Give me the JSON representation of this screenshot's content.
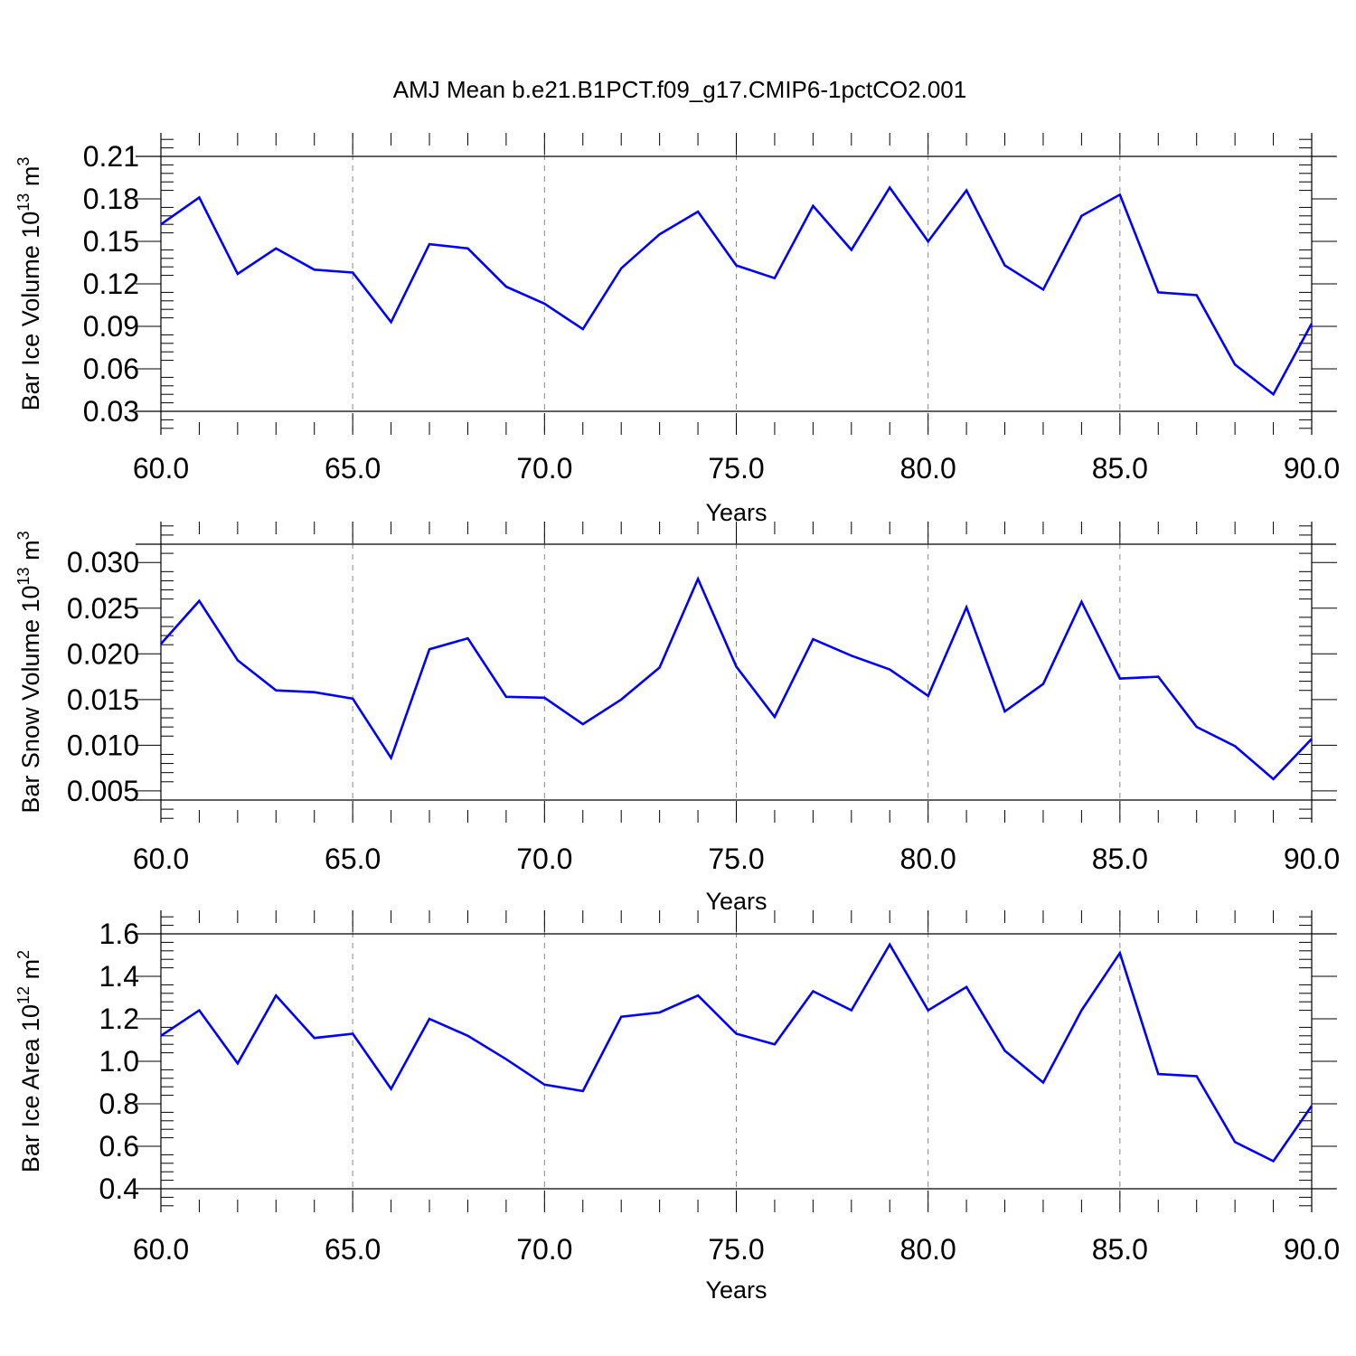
{
  "title": "AMJ Mean b.e21.B1PCT.f09_g17.CMIP6-1pctCO2.001",
  "chart_data": [
    {
      "type": "line",
      "title": "",
      "xlabel": "Years",
      "ylabel_main": "Bar Ice Volume 10",
      "ylabel_sup": "13",
      "ylabel_unit": " m",
      "ylabel_unit_sup": "3",
      "xlim": [
        60,
        90
      ],
      "ylim": [
        0.03,
        0.21
      ],
      "xticks": [
        60,
        65,
        70,
        75,
        80,
        85,
        90
      ],
      "xtick_labels": [
        "60.0",
        "65.0",
        "70.0",
        "75.0",
        "80.0",
        "85.0",
        "90.0"
      ],
      "yticks": [
        0.03,
        0.06,
        0.09,
        0.12,
        0.15,
        0.18,
        0.21
      ],
      "ytick_labels": [
        "0.03",
        "0.06",
        "0.09",
        "0.12",
        "0.15",
        "0.18",
        "0.21"
      ],
      "grid": "vertical dashed at major x ticks",
      "color": "#0000ff",
      "x": [
        60,
        61,
        62,
        63,
        64,
        65,
        66,
        67,
        68,
        69,
        70,
        71,
        72,
        73,
        74,
        75,
        76,
        77,
        78,
        79,
        80,
        81,
        82,
        83,
        84,
        85,
        86,
        87,
        88,
        89,
        90
      ],
      "y": [
        0.162,
        0.181,
        0.127,
        0.145,
        0.13,
        0.128,
        0.093,
        0.148,
        0.145,
        0.118,
        0.106,
        0.088,
        0.131,
        0.155,
        0.171,
        0.133,
        0.124,
        0.175,
        0.144,
        0.188,
        0.15,
        0.186,
        0.133,
        0.116,
        0.168,
        0.183,
        0.114,
        0.112,
        0.063,
        0.042,
        0.092
      ]
    },
    {
      "type": "line",
      "title": "",
      "xlabel": "Years",
      "ylabel_main": "Bar Snow Volume 10",
      "ylabel_sup": "13",
      "ylabel_unit": " m",
      "ylabel_unit_sup": "3",
      "xlim": [
        60,
        90
      ],
      "ylim": [
        0.004,
        0.032
      ],
      "xticks": [
        60,
        65,
        70,
        75,
        80,
        85,
        90
      ],
      "xtick_labels": [
        "60.0",
        "65.0",
        "70.0",
        "75.0",
        "80.0",
        "85.0",
        "90.0"
      ],
      "yticks": [
        0.005,
        0.01,
        0.015,
        0.02,
        0.025,
        0.03
      ],
      "ytick_labels": [
        "0.005",
        "0.010",
        "0.015",
        "0.020",
        "0.025",
        "0.030"
      ],
      "grid": "vertical dashed at major x ticks",
      "color": "#0000ff",
      "x": [
        60,
        61,
        62,
        63,
        64,
        65,
        66,
        67,
        68,
        69,
        70,
        71,
        72,
        73,
        74,
        75,
        76,
        77,
        78,
        79,
        80,
        81,
        82,
        83,
        84,
        85,
        86,
        87,
        88,
        89,
        90
      ],
      "y": [
        0.0211,
        0.0258,
        0.0193,
        0.016,
        0.0158,
        0.0151,
        0.0086,
        0.0205,
        0.0217,
        0.0153,
        0.0152,
        0.0123,
        0.015,
        0.0185,
        0.0282,
        0.0186,
        0.0131,
        0.0216,
        0.0198,
        0.0183,
        0.0154,
        0.0251,
        0.0137,
        0.0167,
        0.0257,
        0.0173,
        0.0175,
        0.012,
        0.0099,
        0.0063,
        0.0107
      ]
    },
    {
      "type": "line",
      "title": "",
      "xlabel": "Years",
      "ylabel_main": "Bar Ice Area 10",
      "ylabel_sup": "12",
      "ylabel_unit": " m",
      "ylabel_unit_sup": "2",
      "xlim": [
        60,
        90
      ],
      "ylim": [
        0.4,
        1.6
      ],
      "xticks": [
        60,
        65,
        70,
        75,
        80,
        85,
        90
      ],
      "xtick_labels": [
        "60.0",
        "65.0",
        "70.0",
        "75.0",
        "80.0",
        "85.0",
        "90.0"
      ],
      "yticks": [
        0.4,
        0.6,
        0.8,
        1.0,
        1.2,
        1.4,
        1.6
      ],
      "ytick_labels": [
        "0.4",
        "0.6",
        "0.8",
        "1.0",
        "1.2",
        "1.4",
        "1.6"
      ],
      "grid": "vertical dashed at major x ticks",
      "color": "#0000ff",
      "x": [
        60,
        61,
        62,
        63,
        64,
        65,
        66,
        67,
        68,
        69,
        70,
        71,
        72,
        73,
        74,
        75,
        76,
        77,
        78,
        79,
        80,
        81,
        82,
        83,
        84,
        85,
        86,
        87,
        88,
        89,
        90
      ],
      "y": [
        1.12,
        1.24,
        0.99,
        1.31,
        1.11,
        1.13,
        0.87,
        1.2,
        1.12,
        1.01,
        0.89,
        0.86,
        1.21,
        1.23,
        1.31,
        1.13,
        1.08,
        1.33,
        1.24,
        1.55,
        1.24,
        1.35,
        1.05,
        0.9,
        1.24,
        1.51,
        0.94,
        0.93,
        0.62,
        0.53,
        0.79
      ]
    }
  ]
}
